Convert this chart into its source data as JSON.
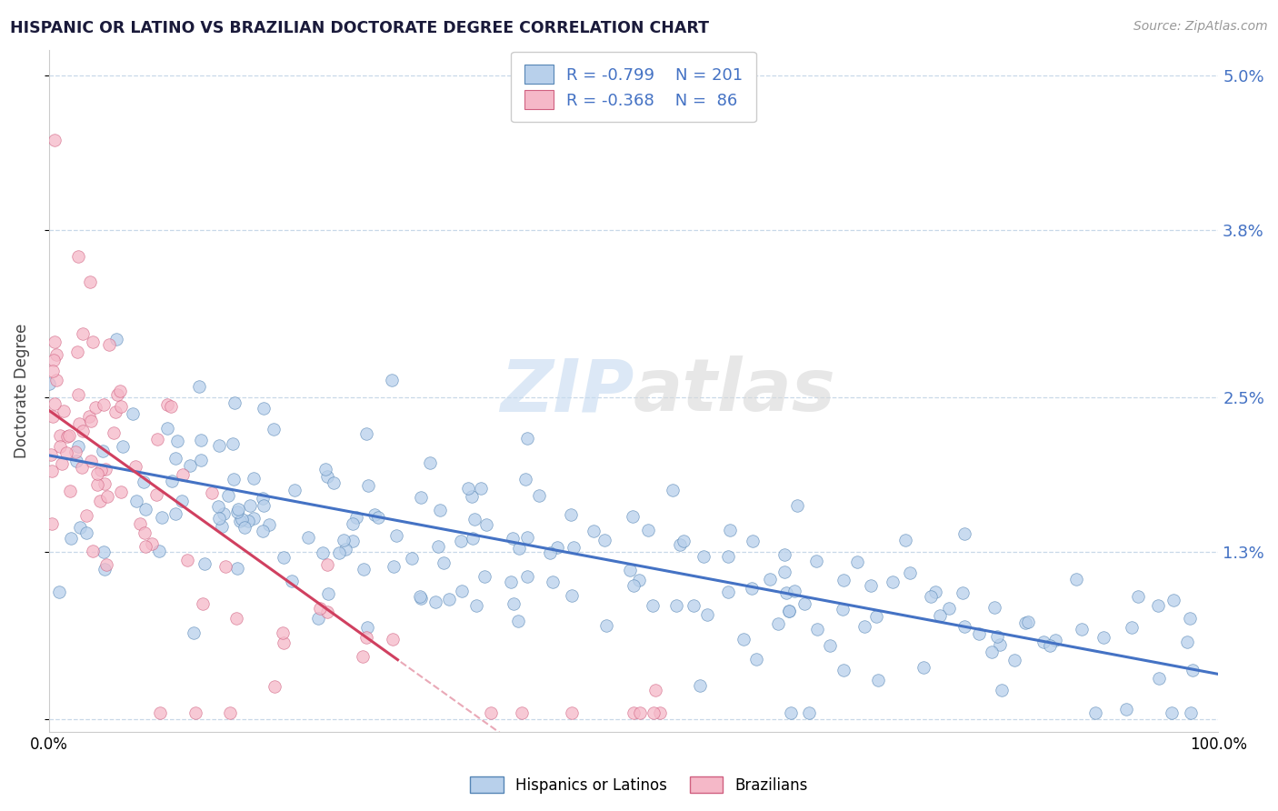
{
  "title": "HISPANIC OR LATINO VS BRAZILIAN DOCTORATE DEGREE CORRELATION CHART",
  "source_text": "Source: ZipAtlas.com",
  "ylabel": "Doctorate Degree",
  "xlim": [
    0,
    100
  ],
  "ylim": [
    -0.1,
    5.2
  ],
  "ytick_vals": [
    0.0,
    1.3,
    2.5,
    3.8,
    5.0
  ],
  "ytick_labels_right": [
    "",
    "1.3%",
    "2.5%",
    "3.8%",
    "5.0%"
  ],
  "xtick_vals": [
    0,
    100
  ],
  "xtick_labels": [
    "0.0%",
    "100.0%"
  ],
  "blue_fill": "#b8d0eb",
  "blue_edge": "#5585b5",
  "blue_line": "#4472c4",
  "pink_fill": "#f5b8c8",
  "pink_edge": "#d06080",
  "pink_line": "#d04060",
  "blue_R": -0.799,
  "blue_N": 201,
  "pink_R": -0.368,
  "pink_N": 86,
  "blue_intercept": 2.05,
  "blue_slope": -0.017,
  "pink_intercept": 2.4,
  "pink_slope": -0.065,
  "pink_solid_end_x": 30,
  "watermark_zip_color": "#c5daf0",
  "watermark_atlas_color": "#d8d8d8",
  "grid_color": "#c8d8e8",
  "title_color": "#1a1a3a",
  "source_color": "#999999",
  "ylabel_color": "#444444"
}
